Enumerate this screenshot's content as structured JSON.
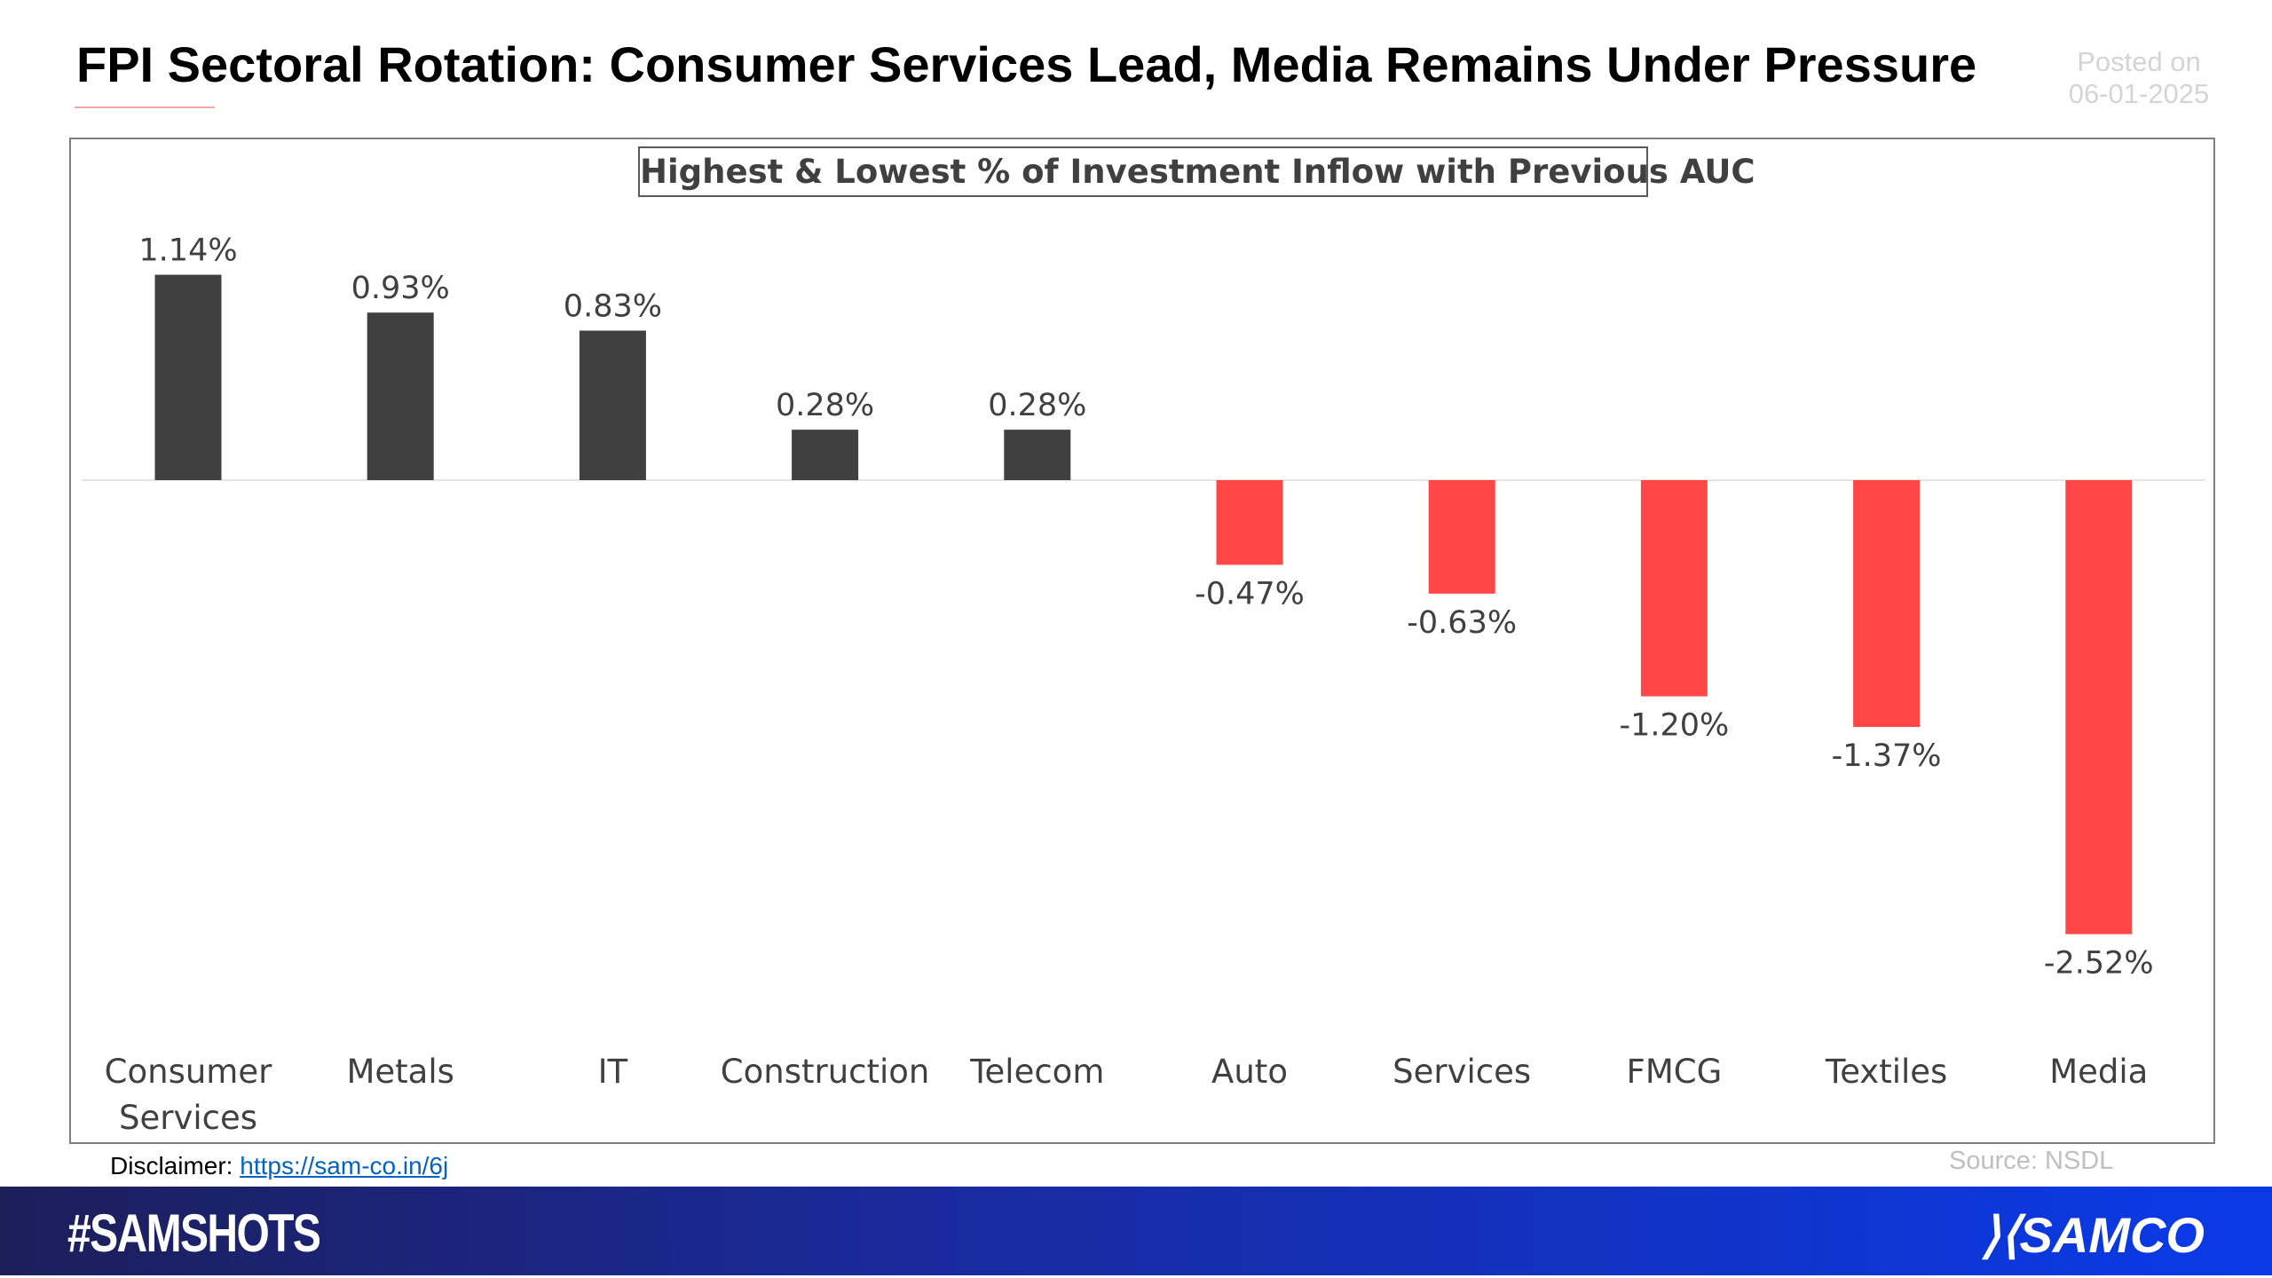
{
  "header": {
    "title": "FPI Sectoral Rotation: Consumer Services Lead, Media Remains Under Pressure",
    "posted_label": "Posted on",
    "posted_date": "06-01-2025"
  },
  "chart_data": {
    "type": "bar",
    "title": "Highest & Lowest % of Investment Inflow with Previous AUC",
    "categories": [
      "Consumer Services",
      "Metals",
      "IT",
      "Construction",
      "Telecom",
      "Auto",
      "Services",
      "FMCG",
      "Textiles",
      "Media"
    ],
    "values": [
      1.14,
      0.93,
      0.83,
      0.28,
      0.28,
      -0.47,
      -0.63,
      -1.2,
      -1.37,
      -2.52
    ],
    "data_labels": [
      "1.14%",
      "0.93%",
      "0.83%",
      "0.28%",
      "0.28%",
      "-0.47%",
      "-0.63%",
      "-1.20%",
      "-1.37%",
      "-2.52%"
    ],
    "xlabel": "",
    "ylabel": "",
    "grid": false,
    "colors": {
      "positive": "#404040",
      "negative": "#ff4747"
    }
  },
  "footer": {
    "disclaimer_label": "Disclaimer:",
    "disclaimer_link": "https://sam-co.in/6j",
    "source": "Source: NSDL",
    "hashtag": "#SAMSHOTS",
    "logo": "SAMCO"
  }
}
